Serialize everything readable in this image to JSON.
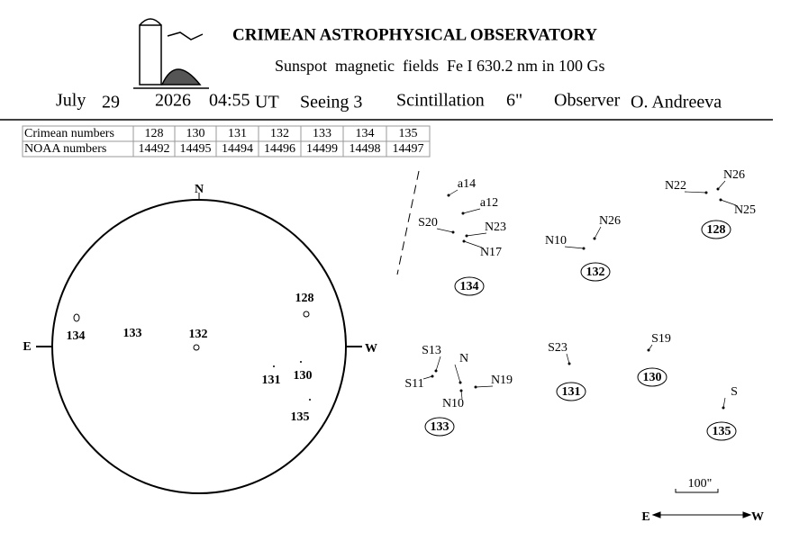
{
  "header": {
    "title": "CRIMEAN ASTROPHYSICAL OBSERVATORY",
    "subtitle": "Sunspot  magnetic  fields  Fe I 630.2 nm in 100 Gs"
  },
  "info": {
    "month": "July",
    "day": "29",
    "year": "2026",
    "time": "04:55",
    "time_zone": "UT",
    "seeing": "Seeing 3",
    "scintillation_label": "Scintillation",
    "scintillation": "6\"",
    "observer_label": "Observer",
    "observer": "O. Andreeva"
  },
  "table": {
    "rows": [
      [
        "Crimean numbers",
        "128",
        "130",
        "131",
        "132",
        "133",
        "134",
        "135"
      ],
      [
        "NOAA numbers",
        "14492",
        "14495",
        "14494",
        "14496",
        "14499",
        "14498",
        "14497"
      ]
    ]
  },
  "disk": {
    "north": "N",
    "east": "E",
    "west": "W",
    "regions": [
      "134",
      "133",
      "132",
      "128",
      "131",
      "130",
      "135"
    ]
  },
  "panels": [
    {
      "group": "134",
      "spots": [
        "a14",
        "a12",
        "S20",
        "N23",
        "N17"
      ]
    },
    {
      "group": "132",
      "spots": [
        "N26",
        "N10"
      ]
    },
    {
      "group": "128",
      "spots": [
        "N22",
        "N26",
        "N25"
      ]
    },
    {
      "group": "133",
      "spots": [
        "S13",
        "N",
        "S11",
        "N19",
        "N10"
      ]
    },
    {
      "group": "131",
      "spots": [
        "S23"
      ]
    },
    {
      "group": "130",
      "spots": [
        "S19"
      ]
    },
    {
      "group": "135",
      "spots": [
        "S"
      ]
    }
  ],
  "scale": {
    "label": "100\"",
    "east": "E",
    "west": "W"
  }
}
